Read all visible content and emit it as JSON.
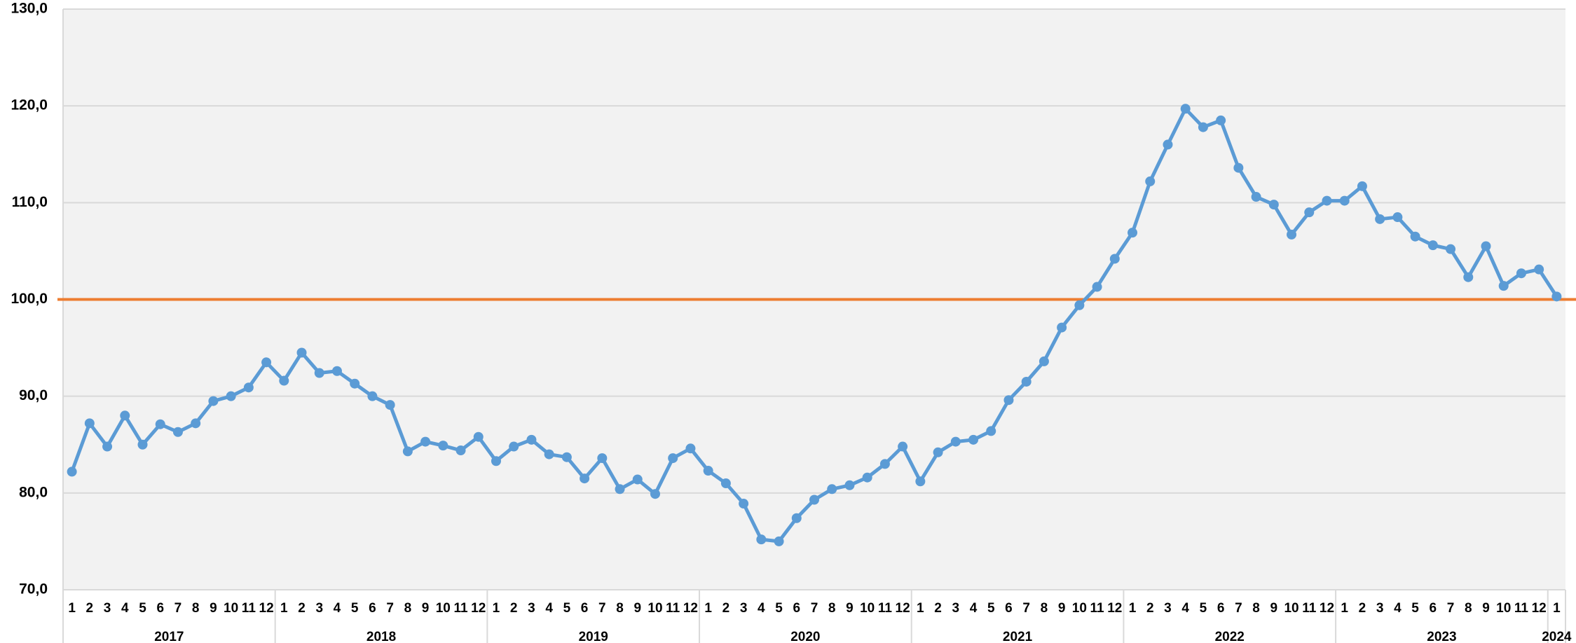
{
  "chart_data": {
    "type": "line",
    "groups": [
      {
        "name": "2017",
        "categories": [
          "1",
          "2",
          "3",
          "4",
          "5",
          "6",
          "7",
          "8",
          "9",
          "10",
          "11",
          "12"
        ]
      },
      {
        "name": "2018",
        "categories": [
          "1",
          "2",
          "3",
          "4",
          "5",
          "6",
          "7",
          "8",
          "9",
          "10",
          "11",
          "12"
        ]
      },
      {
        "name": "2019",
        "categories": [
          "1",
          "2",
          "3",
          "4",
          "5",
          "6",
          "7",
          "8",
          "9",
          "10",
          "11",
          "12"
        ]
      },
      {
        "name": "2020",
        "categories": [
          "1",
          "2",
          "3",
          "4",
          "5",
          "6",
          "7",
          "8",
          "9",
          "10",
          "11",
          "12"
        ]
      },
      {
        "name": "2021",
        "categories": [
          "1",
          "2",
          "3",
          "4",
          "5",
          "6",
          "7",
          "8",
          "9",
          "10",
          "11",
          "12"
        ]
      },
      {
        "name": "2022",
        "categories": [
          "1",
          "2",
          "3",
          "4",
          "5",
          "6",
          "7",
          "8",
          "9",
          "10",
          "11",
          "12"
        ]
      },
      {
        "name": "2023",
        "categories": [
          "1",
          "2",
          "3",
          "4",
          "5",
          "6",
          "7",
          "8",
          "9",
          "10",
          "11",
          "12"
        ]
      },
      {
        "name": "2024",
        "categories": [
          "1"
        ]
      }
    ],
    "values": [
      82.2,
      87.2,
      84.8,
      88.0,
      85.0,
      87.1,
      86.3,
      87.2,
      89.5,
      90.0,
      90.9,
      93.5,
      91.6,
      94.5,
      92.4,
      92.6,
      91.3,
      90.0,
      89.1,
      84.3,
      85.3,
      84.9,
      84.4,
      85.8,
      83.3,
      84.8,
      85.5,
      84.0,
      83.7,
      81.5,
      83.6,
      80.4,
      81.4,
      79.9,
      83.6,
      84.6,
      82.3,
      81.0,
      78.9,
      75.2,
      75.0,
      77.4,
      79.3,
      80.4,
      80.8,
      81.6,
      83.0,
      84.8,
      81.2,
      84.2,
      85.3,
      85.5,
      86.4,
      89.6,
      91.5,
      93.6,
      97.1,
      99.4,
      101.3,
      104.2,
      106.9,
      112.2,
      116.0,
      119.7,
      117.8,
      118.5,
      113.6,
      110.6,
      109.8,
      106.7,
      109.0,
      110.2,
      110.2,
      111.7,
      108.3,
      108.5,
      106.5,
      105.6,
      105.2,
      102.3,
      105.5,
      101.4,
      102.7,
      103.1,
      100.3
    ],
    "color": "#5b9bd5",
    "reference_line": {
      "value": 100,
      "color": "#ed7d31"
    },
    "ylim": [
      70,
      130
    ],
    "yticks": [
      {
        "value": 70,
        "label": "70,0"
      },
      {
        "value": 80,
        "label": "80,0"
      },
      {
        "value": 90,
        "label": "90,0"
      },
      {
        "value": 100,
        "label": "100,0"
      },
      {
        "value": 110,
        "label": "110,0"
      },
      {
        "value": 120,
        "label": "120,0"
      },
      {
        "value": 130,
        "label": "130,0"
      }
    ],
    "grid": true
  }
}
